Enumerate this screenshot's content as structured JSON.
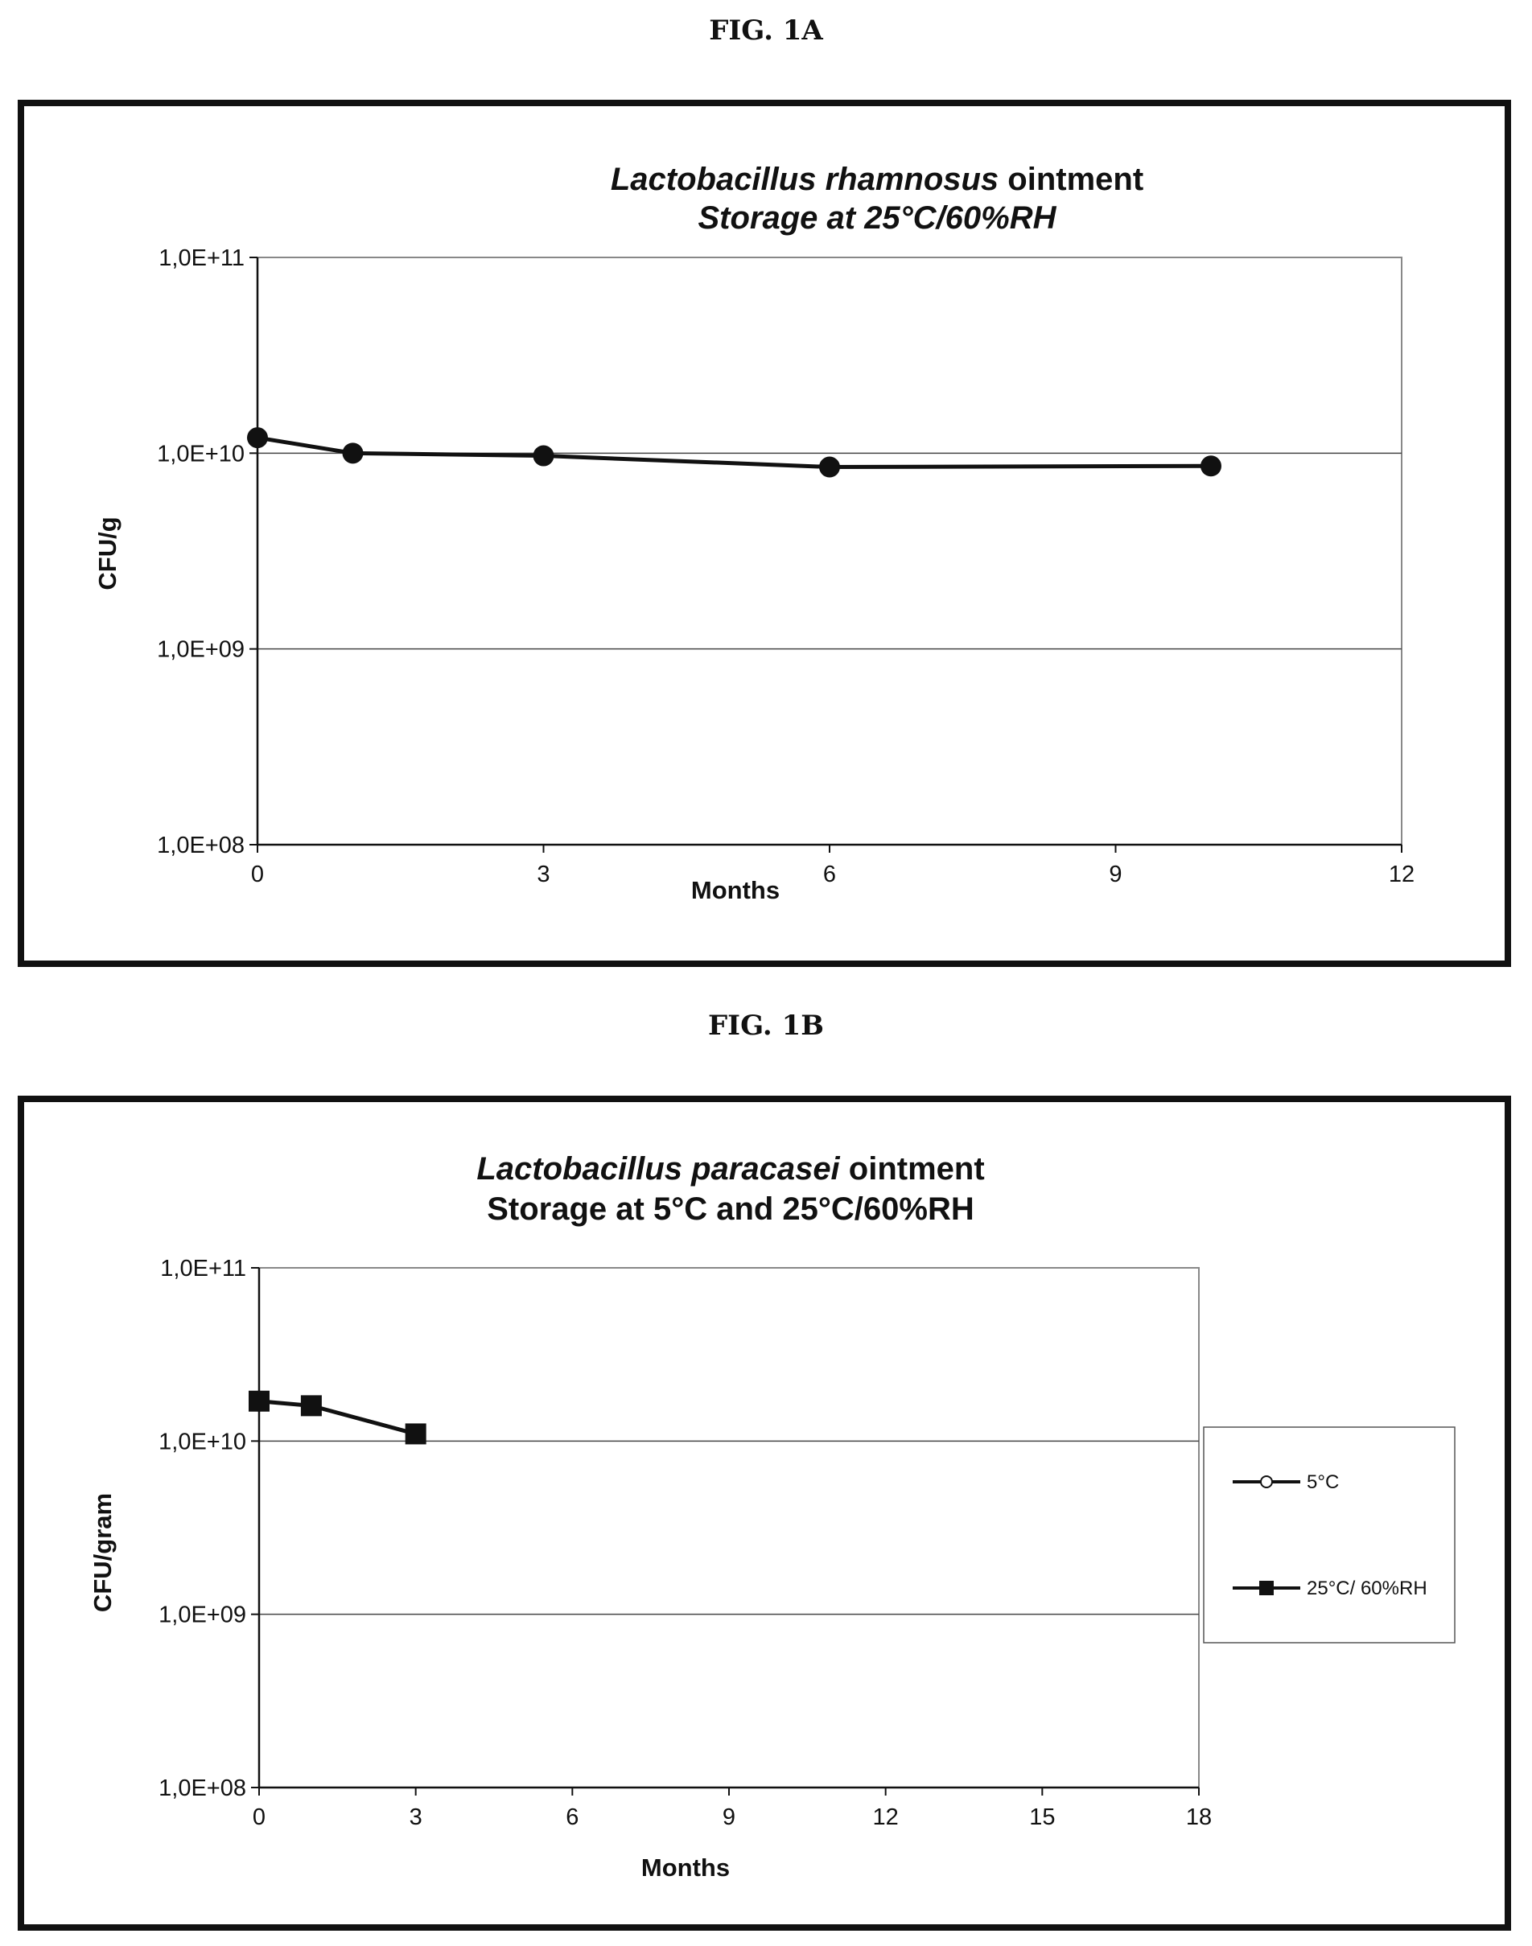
{
  "figures": [
    {
      "label": "FIG. 1A"
    },
    {
      "label": "FIG. 1B"
    }
  ],
  "chart_data": [
    {
      "type": "line",
      "title_italic": "Lactobacillus  rhamnosus",
      "title_rest": " ointment",
      "subtitle": "Storage at 25°C/60%RH",
      "subtitle_italic": true,
      "xlabel": "Months",
      "ylabel": "CFU/g",
      "x_ticks": [
        "0",
        "3",
        "6",
        "9",
        "12"
      ],
      "y_ticks": [
        "1,0E+08",
        "1,0E+09",
        "1,0E+10",
        "1,0E+11"
      ],
      "xlim": [
        0,
        12
      ],
      "ylim": [
        100000000,
        100000000000
      ],
      "y_scale": "log",
      "grid": "horizontal major lines",
      "legend": null,
      "series": [
        {
          "marker": "circle",
          "x": [
            0,
            1,
            3,
            6,
            10
          ],
          "y": [
            12000000000,
            10000000000,
            9700000000,
            8500000000,
            8600000000
          ]
        }
      ]
    },
    {
      "type": "line",
      "title_italic": "Lactobacillus  paracasei",
      "title_rest": " ointment",
      "subtitle": "Storage at 5°C and 25°C/60%RH",
      "subtitle_italic": false,
      "xlabel": "Months",
      "ylabel": "CFU/gram",
      "x_ticks": [
        "0",
        "3",
        "6",
        "9",
        "12",
        "15",
        "18"
      ],
      "y_ticks": [
        "1,0E+08",
        "1,0E+09",
        "1,0E+10",
        "1,0E+11"
      ],
      "xlim": [
        0,
        18
      ],
      "ylim": [
        100000000,
        100000000000
      ],
      "y_scale": "log",
      "grid": "horizontal major lines",
      "legend": "right",
      "series": [
        {
          "name": "5°C",
          "marker": "circle",
          "x": [
            0
          ],
          "y": [
            17000000000
          ]
        },
        {
          "name": "25°C/ 60%RH",
          "marker": "square",
          "x": [
            0,
            1,
            3
          ],
          "y": [
            17000000000,
            16000000000,
            11000000000
          ]
        }
      ]
    }
  ]
}
